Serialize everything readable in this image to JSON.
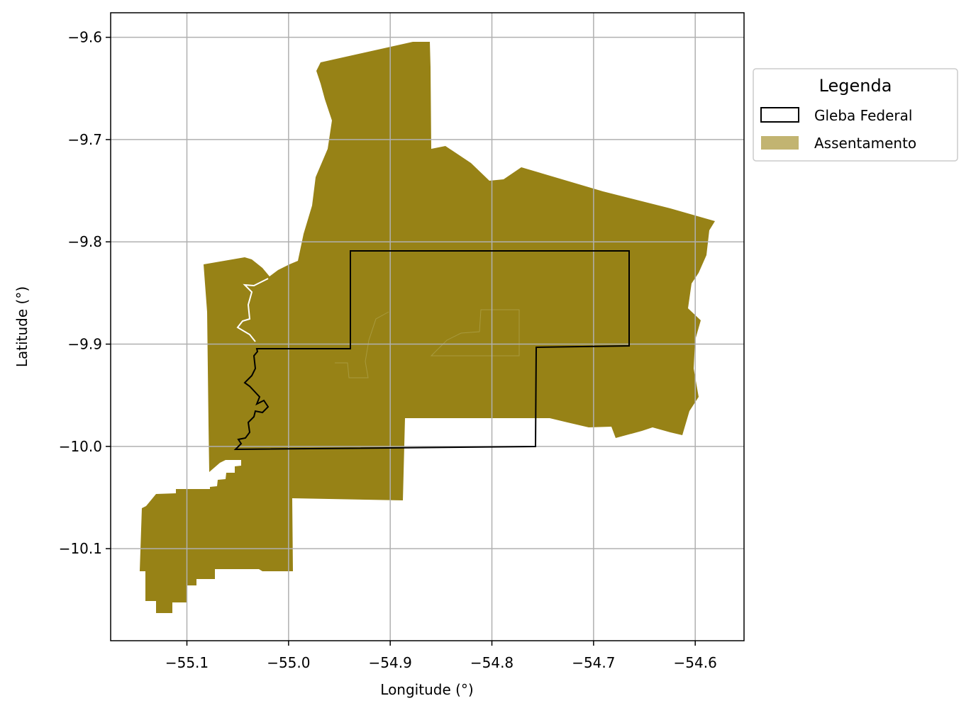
{
  "chart_data": {
    "type": "map",
    "xlabel": "Longitude (°)",
    "ylabel": "Latitude (°)",
    "xlim": [
      -55.175,
      -54.552
    ],
    "ylim": [
      -10.19,
      -9.576
    ],
    "grid": true,
    "x_ticks": [
      -55.1,
      -55.0,
      -54.9,
      -54.8,
      -54.7,
      -54.6
    ],
    "x_tick_labels": [
      "−55.1",
      "−55.0",
      "−54.9",
      "−54.8",
      "−54.7",
      "−54.6"
    ],
    "y_ticks": [
      -9.6,
      -9.7,
      -9.8,
      -9.9,
      -10.0,
      -10.1
    ],
    "y_tick_labels": [
      "−9.6",
      "−9.7",
      "−9.8",
      "−9.9",
      "−10.0",
      "−10.1"
    ],
    "legend": {
      "title": "Legenda",
      "position": "outside-upper-right",
      "entries": [
        {
          "label": "Gleba Federal",
          "style": "outline",
          "color": "#000000"
        },
        {
          "label": "Assentamento",
          "style": "fill",
          "color": "#c2b471"
        }
      ]
    },
    "colors": {
      "assentamento_fill": "#978216",
      "gleba_outline": "#000000",
      "grid": "#b0b0b0"
    }
  }
}
